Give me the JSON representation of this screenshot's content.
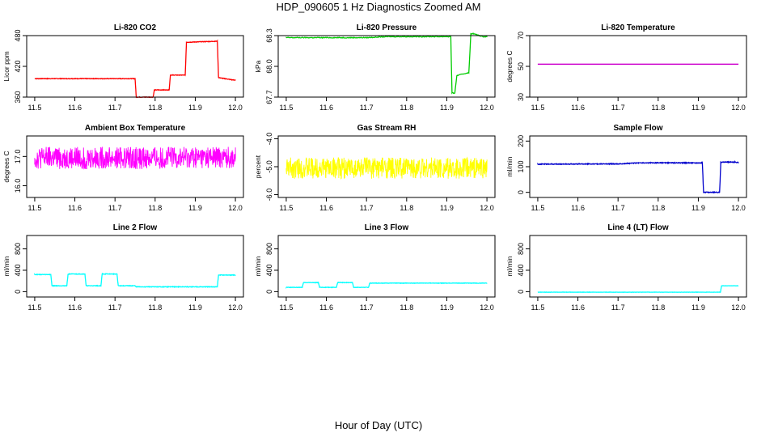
{
  "figure": {
    "title": "HDP_090605  1 Hz Diagnostics Zoomed AM",
    "xlabel": "Hour of Day (UTC)"
  },
  "chart_data": [
    {
      "type": "line",
      "title": "Li-820 CO2",
      "ylabel": "Licor ppm",
      "color": "#ff0000",
      "xlim": [
        11.5,
        12.0
      ],
      "ylim": [
        360,
        480
      ],
      "x_ticks": [
        "11.5",
        "11.6",
        "11.7",
        "11.8",
        "11.9",
        "12.0"
      ],
      "y_ticks": [
        "360",
        "420",
        "480"
      ],
      "noise": 0.5,
      "series": [
        {
          "x": [
            11.5,
            11.75,
            11.753,
            11.795,
            11.798,
            11.835,
            11.838,
            11.875,
            11.878,
            11.955,
            11.958,
            11.99,
            12.0
          ],
          "y": [
            396,
            396,
            360,
            360,
            374,
            374,
            403,
            403,
            467,
            469,
            398,
            394,
            393
          ]
        }
      ]
    },
    {
      "type": "line",
      "title": "Li-820 Pressure",
      "ylabel": "kPa",
      "color": "#00cc00",
      "xlim": [
        11.5,
        12.0
      ],
      "ylim": [
        67.7,
        68.3
      ],
      "x_ticks": [
        "11.5",
        "11.6",
        "11.7",
        "11.8",
        "11.9",
        "12.0"
      ],
      "y_ticks": [
        "67.7",
        "68.0",
        "68.3"
      ],
      "noise": 0.004,
      "series": [
        {
          "x": [
            11.5,
            11.6,
            11.7,
            11.75,
            11.9,
            11.91,
            11.913,
            11.92,
            11.925,
            11.955,
            11.96,
            11.965,
            11.99,
            12.0
          ],
          "y": [
            68.28,
            68.28,
            68.28,
            68.29,
            68.29,
            68.29,
            67.74,
            67.74,
            67.91,
            67.94,
            68.32,
            68.32,
            68.29,
            68.29
          ]
        }
      ]
    },
    {
      "type": "line",
      "title": "Li-820 Temperature",
      "ylabel": "degrees C",
      "color": "#cc00cc",
      "xlim": [
        11.5,
        12.0
      ],
      "ylim": [
        30,
        70
      ],
      "x_ticks": [
        "11.5",
        "11.6",
        "11.7",
        "11.8",
        "11.9",
        "12.0"
      ],
      "y_ticks": [
        "30",
        "50",
        "70"
      ],
      "noise": 0,
      "series": [
        {
          "x": [
            11.5,
            12.0
          ],
          "y": [
            51.4,
            51.4
          ]
        }
      ]
    },
    {
      "type": "line",
      "title": "Ambient Box Temperature",
      "ylabel": "degrees C",
      "color": "#ff00ff",
      "xlim": [
        11.5,
        12.0
      ],
      "ylim": [
        15.6,
        17.7
      ],
      "x_ticks": [
        "11.5",
        "11.6",
        "11.7",
        "11.8",
        "11.9",
        "12.0"
      ],
      "y_ticks": [
        "16.0",
        "17.0"
      ],
      "noise": 0.38,
      "series": [
        {
          "x": [
            11.5,
            12.0
          ],
          "y": [
            16.95,
            16.95
          ]
        }
      ]
    },
    {
      "type": "line",
      "title": "Gas Stream RH",
      "ylabel": "percent",
      "color": "#ffff00",
      "xlim": [
        11.5,
        12.0
      ],
      "ylim": [
        -6.1,
        -3.9
      ],
      "x_ticks": [
        "11.5",
        "11.6",
        "11.7",
        "11.8",
        "11.9",
        "12.0"
      ],
      "y_ticks": [
        "-6.0",
        "-5.0",
        "-4.0"
      ],
      "noise": 0.38,
      "series": [
        {
          "x": [
            11.5,
            12.0
          ],
          "y": [
            -5.05,
            -5.05
          ]
        }
      ]
    },
    {
      "type": "line",
      "title": "Sample Flow",
      "ylabel": "ml/min",
      "color": "#0000cc",
      "xlim": [
        11.5,
        12.0
      ],
      "ylim": [
        -20,
        220
      ],
      "x_ticks": [
        "11.5",
        "11.6",
        "11.7",
        "11.8",
        "11.9",
        "12.0"
      ],
      "y_ticks": [
        "0",
        "100",
        "200"
      ],
      "noise": 1.5,
      "series": [
        {
          "x": [
            11.5,
            11.7,
            11.75,
            11.91,
            11.913,
            11.953,
            11.956,
            11.99,
            12.0
          ],
          "y": [
            110,
            111,
            115,
            115,
            0,
            0,
            118,
            118,
            116
          ]
        }
      ]
    },
    {
      "type": "line",
      "title": "Line 2 Flow",
      "ylabel": "ml/min",
      "color": "#00ffff",
      "xlim": [
        11.5,
        12.0
      ],
      "ylim": [
        -100,
        1050
      ],
      "x_ticks": [
        "11.5",
        "11.6",
        "11.7",
        "11.8",
        "11.9",
        "12.0"
      ],
      "y_ticks": [
        "0",
        "400",
        "800"
      ],
      "noise": 5,
      "series": [
        {
          "x": [
            11.5,
            11.54,
            11.543,
            11.58,
            11.583,
            11.625,
            11.628,
            11.665,
            11.668,
            11.705,
            11.708,
            11.75,
            11.753,
            11.955,
            11.958,
            12.0
          ],
          "y": [
            320,
            320,
            110,
            110,
            330,
            330,
            110,
            110,
            330,
            330,
            110,
            110,
            90,
            90,
            310,
            310
          ]
        }
      ]
    },
    {
      "type": "line",
      "title": "Line 3 Flow",
      "ylabel": "ml/min",
      "color": "#00ffff",
      "xlim": [
        11.5,
        12.0
      ],
      "ylim": [
        -100,
        1050
      ],
      "x_ticks": [
        "11.5",
        "11.6",
        "11.7",
        "11.8",
        "11.9",
        "12.0"
      ],
      "y_ticks": [
        "0",
        "400",
        "800"
      ],
      "noise": 4,
      "series": [
        {
          "x": [
            11.5,
            11.54,
            11.543,
            11.58,
            11.583,
            11.625,
            11.628,
            11.665,
            11.668,
            11.705,
            11.708,
            12.0
          ],
          "y": [
            80,
            80,
            170,
            170,
            80,
            80,
            170,
            170,
            80,
            80,
            160,
            160
          ]
        }
      ]
    },
    {
      "type": "line",
      "title": "Line 4 (LT) Flow",
      "ylabel": "ml/min",
      "color": "#00ffff",
      "xlim": [
        11.5,
        12.0
      ],
      "ylim": [
        -100,
        1050
      ],
      "x_ticks": [
        "11.5",
        "11.6",
        "11.7",
        "11.8",
        "11.9",
        "12.0"
      ],
      "y_ticks": [
        "0",
        "400",
        "800"
      ],
      "noise": 2,
      "series": [
        {
          "x": [
            11.5,
            11.955,
            11.958,
            12.0
          ],
          "y": [
            -10,
            -10,
            110,
            110
          ]
        }
      ]
    }
  ]
}
